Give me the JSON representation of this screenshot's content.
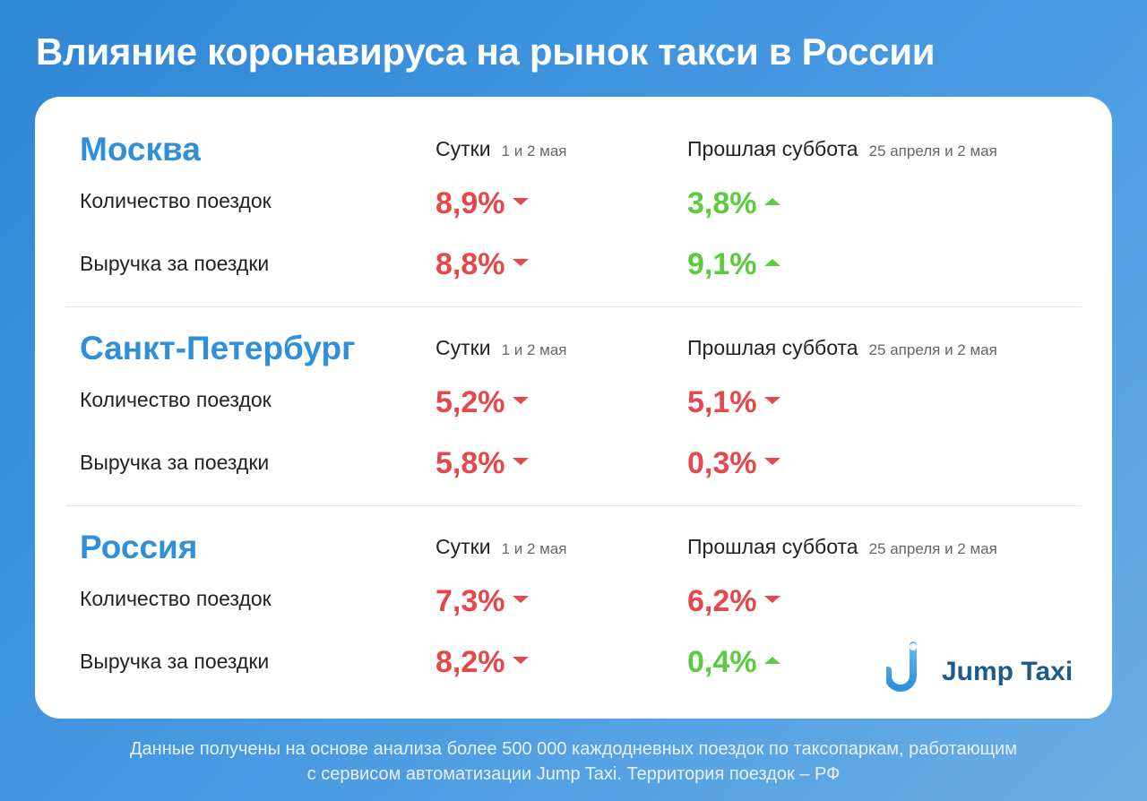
{
  "title": "Влияние коронавируса на рынок такси в России",
  "columns": {
    "col1_title": "Сутки",
    "col1_sub": "1 и 2 мая",
    "col2_title": "Прошлая суббота",
    "col2_sub": "25 апреля и 2 мая"
  },
  "rows": {
    "trips_label": "Количество поездок",
    "revenue_label": "Выручка за поездки"
  },
  "sections": [
    {
      "region": "Москва",
      "trips": [
        {
          "value": "8,9%",
          "dir": "down"
        },
        {
          "value": "3,8%",
          "dir": "up"
        }
      ],
      "revenue": [
        {
          "value": "8,8%",
          "dir": "down"
        },
        {
          "value": "9,1%",
          "dir": "up"
        }
      ]
    },
    {
      "region": "Санкт-Петербург",
      "trips": [
        {
          "value": "5,2%",
          "dir": "down"
        },
        {
          "value": "5,1%",
          "dir": "down"
        }
      ],
      "revenue": [
        {
          "value": "5,8%",
          "dir": "down"
        },
        {
          "value": "0,3%",
          "dir": "down"
        }
      ]
    },
    {
      "region": "Россия",
      "trips": [
        {
          "value": "7,3%",
          "dir": "down"
        },
        {
          "value": "6,2%",
          "dir": "down"
        }
      ],
      "revenue": [
        {
          "value": "8,2%",
          "dir": "down"
        },
        {
          "value": "0,4%",
          "dir": "up"
        }
      ]
    }
  ],
  "logo": {
    "text": "Jump Taxi",
    "icon": "jump-taxi-logo-icon"
  },
  "footer": {
    "line1": "Данные получены на основе анализа более 500 000 каждодневных поездок по таксопаркам, работающим",
    "line2": "с сервисом автоматизации Jump Taxi. Территория поездок – РФ"
  },
  "colors": {
    "down": "#e5474b",
    "up": "#5acb3c",
    "region": "#2f8fda",
    "brand": "#1d5b8a"
  }
}
